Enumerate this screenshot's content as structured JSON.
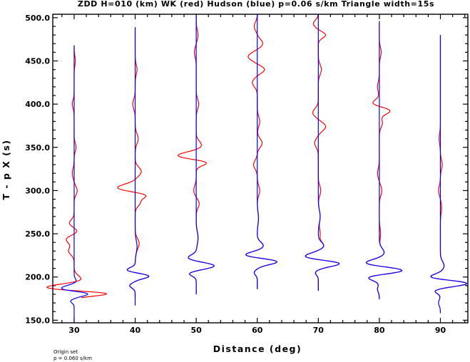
{
  "chart_data": {
    "type": "line",
    "title": "ZDD H=010 (km) WK (red) Hudson (blue) p=0.06 s/km Triangle width=15s",
    "xlabel": "Distance (deg)",
    "ylabel": "T - p X (s)",
    "xlim": [
      26.5,
      94.5
    ],
    "ylim": [
      147,
      504
    ],
    "x_ticks": [
      30,
      40,
      50,
      60,
      70,
      80,
      90
    ],
    "x_tick_labels": [
      "30",
      "40",
      "50",
      "60",
      "70",
      "80",
      "90"
    ],
    "y_ticks": [
      150,
      200,
      250,
      300,
      350,
      400,
      450,
      500
    ],
    "y_tick_labels": [
      "150.0",
      "200.0",
      "250.0",
      "300.0",
      "350.0",
      "400.0",
      "450.0",
      "500.0"
    ],
    "grid": false,
    "legend": "none",
    "series": [
      {
        "name": "WK",
        "color": "#ff0000"
      },
      {
        "name": "Hudson",
        "color": "#0000ff"
      }
    ],
    "traces": [
      {
        "distance": 30,
        "start_time": 147,
        "end_time": 468,
        "blue_pulses": [
          [
            172,
            -0.6,
            3
          ],
          [
            186,
            -2.5,
            5
          ],
          [
            181,
            3.0,
            4
          ],
          [
            195,
            0.4,
            4
          ]
        ],
        "red_pulses": [
          [
            189,
            -2.8,
            5
          ],
          [
            181,
            3.3,
            4
          ],
          [
            198,
            1.0,
            6
          ],
          [
            230,
            -0.9,
            6
          ],
          [
            244,
            -1.4,
            7
          ],
          [
            252,
            0.8,
            6
          ],
          [
            262,
            -0.8,
            6
          ],
          [
            300,
            0.5,
            7
          ],
          [
            320,
            -0.3,
            8
          ],
          [
            350,
            0.3,
            7
          ],
          [
            400,
            -0.3,
            7
          ],
          [
            450,
            0.2,
            8
          ]
        ]
      },
      {
        "distance": 40,
        "start_time": 167,
        "end_time": 489,
        "blue_pulses": [
          [
            190,
            -0.9,
            4
          ],
          [
            201,
            2.3,
            4
          ],
          [
            208,
            -1.4,
            4
          ],
          [
            235,
            0.3,
            10
          ]
        ],
        "red_pulses": [
          [
            303,
            -3.0,
            6
          ],
          [
            295,
            2.0,
            5
          ],
          [
            322,
            1.0,
            7
          ],
          [
            286,
            0.8,
            6
          ],
          [
            240,
            0.4,
            7
          ],
          [
            360,
            0.5,
            8
          ],
          [
            400,
            -0.4,
            8
          ],
          [
            440,
            0.3,
            8
          ]
        ]
      },
      {
        "distance": 50,
        "start_time": 180,
        "end_time": 502,
        "blue_pulses": [
          [
            204,
            -1.2,
            4
          ],
          [
            213,
            3.0,
            5
          ],
          [
            222,
            -1.4,
            5
          ],
          [
            245,
            0.3,
            10
          ]
        ],
        "red_pulses": [
          [
            340,
            -3.3,
            6
          ],
          [
            333,
            2.3,
            5
          ],
          [
            352,
            0.9,
            7
          ],
          [
            285,
            0.5,
            7
          ],
          [
            300,
            -0.4,
            8
          ],
          [
            400,
            0.4,
            8
          ],
          [
            460,
            -0.3,
            8
          ],
          [
            480,
            0.3,
            8
          ]
        ]
      },
      {
        "distance": 60,
        "start_time": 186,
        "end_time": 504,
        "blue_pulses": [
          [
            218,
            3.5,
            5
          ],
          [
            225,
            -2.3,
            5
          ],
          [
            236,
            1.0,
            6
          ],
          [
            205,
            -0.5,
            4
          ],
          [
            268,
            0.2,
            10
          ]
        ],
        "red_pulses": [
          [
            455,
            -1.5,
            7
          ],
          [
            440,
            1.2,
            6
          ],
          [
            470,
            0.9,
            7
          ],
          [
            425,
            -0.8,
            7
          ],
          [
            355,
            0.8,
            7
          ],
          [
            330,
            -0.6,
            7
          ],
          [
            300,
            0.4,
            8
          ],
          [
            380,
            0.4,
            8
          ],
          [
            490,
            -0.5,
            7
          ]
        ]
      },
      {
        "distance": 70,
        "start_time": 184,
        "end_time": 504,
        "blue_pulses": [
          [
            216,
            4.0,
            5
          ],
          [
            223,
            -2.5,
            6
          ],
          [
            236,
            0.9,
            6
          ],
          [
            205,
            -0.5,
            4
          ],
          [
            270,
            0.3,
            10
          ]
        ],
        "red_pulses": [
          [
            374,
            1.2,
            7
          ],
          [
            390,
            -0.9,
            7
          ],
          [
            355,
            -0.6,
            7
          ],
          [
            480,
            1.2,
            5
          ],
          [
            493,
            -0.8,
            6
          ],
          [
            440,
            0.5,
            8
          ],
          [
            300,
            0.4,
            8
          ],
          [
            250,
            0.3,
            8
          ]
        ]
      },
      {
        "distance": 80,
        "start_time": 174,
        "end_time": 496,
        "blue_pulses": [
          [
            208,
            4.6,
            6
          ],
          [
            200,
            -2.3,
            5
          ],
          [
            215,
            -3.0,
            6
          ],
          [
            228,
            0.8,
            7
          ],
          [
            186,
            -0.3,
            5
          ]
        ],
        "red_pulses": [
          [
            393,
            2.0,
            6
          ],
          [
            400,
            -1.4,
            6
          ],
          [
            378,
            0.5,
            7
          ],
          [
            420,
            -0.3,
            8
          ],
          [
            300,
            0.4,
            8
          ],
          [
            320,
            -0.3,
            8
          ],
          [
            460,
            0.3,
            8
          ],
          [
            250,
            0.2,
            9
          ]
        ]
      },
      {
        "distance": 90,
        "start_time": 158,
        "end_time": 480,
        "blue_pulses": [
          [
            193,
            4.8,
            5
          ],
          [
            199,
            -2.3,
            5
          ],
          [
            184,
            -1.0,
            4
          ],
          [
            213,
            0.6,
            7
          ],
          [
            170,
            -0.3,
            5
          ]
        ],
        "red_pulses": [
          [
            300,
            -0.3,
            8
          ],
          [
            330,
            0.3,
            8
          ],
          [
            280,
            0.2,
            9
          ],
          [
            360,
            -0.2,
            9
          ]
        ]
      }
    ],
    "annotations": [
      "Origin set",
      "p = 0.060 s/km"
    ]
  }
}
